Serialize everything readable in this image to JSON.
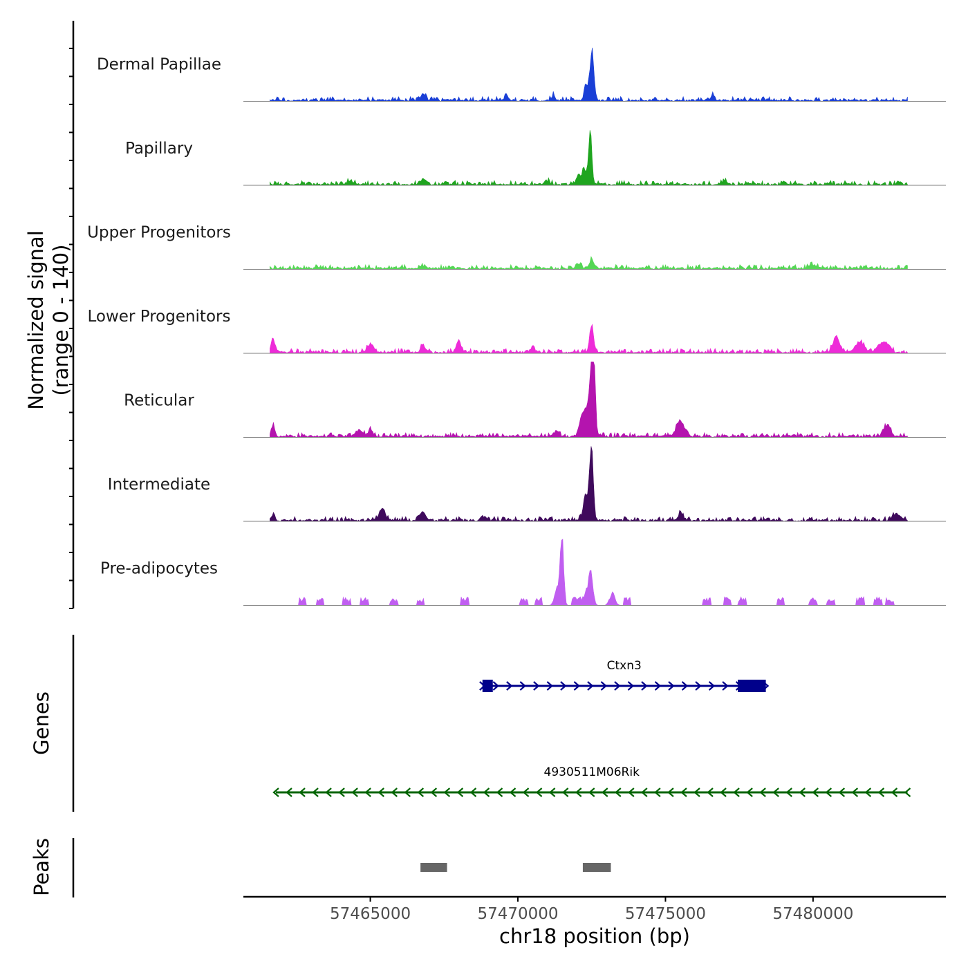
{
  "chart_data": {
    "type": "area",
    "title": "",
    "ylabel": "Normalized signal",
    "ylabel_range": "(range 0 - 140)",
    "genes_label": "Genes",
    "peaks_label": "Peaks",
    "xlabel": "chr18 position (bp)",
    "xlim": [
      57460700,
      57484500
    ],
    "ylim": [
      0,
      140
    ],
    "x_ticks": [
      57465000,
      57470000,
      57475000,
      57480000
    ],
    "x_tick_labels": [
      "57465000",
      "57470000",
      "57475000",
      "57480000"
    ],
    "tracks": [
      {
        "name": "Dermal Papillae",
        "color": "#1a3fd6",
        "seed": 3,
        "peaks": [
          [
            57472500,
            95,
            70
          ],
          [
            57472300,
            25,
            60
          ],
          [
            57466800,
            12,
            80
          ],
          [
            57476600,
            14,
            60
          ],
          [
            57469600,
            10,
            60
          ],
          [
            57471200,
            10,
            60
          ]
        ]
      },
      {
        "name": "Papillary",
        "color": "#1fa51f",
        "seed": 7,
        "peaks": [
          [
            57472450,
            100,
            55
          ],
          [
            57472250,
            32,
            60
          ],
          [
            57472050,
            20,
            60
          ],
          [
            57466800,
            10,
            100
          ],
          [
            57464300,
            6,
            100
          ],
          [
            57471000,
            7,
            80
          ],
          [
            57477000,
            5,
            100
          ]
        ]
      },
      {
        "name": "Upper Progenitors",
        "color": "#55d655",
        "seed": 11,
        "peaks": [
          [
            57472500,
            16,
            80
          ],
          [
            57472100,
            10,
            70
          ],
          [
            57480000,
            6,
            150
          ],
          [
            57466800,
            5,
            120
          ]
        ]
      },
      {
        "name": "Lower Progenitors",
        "color": "#ee2bd8",
        "seed": 13,
        "peaks": [
          [
            57472500,
            50,
            70
          ],
          [
            57461700,
            28,
            60
          ],
          [
            57465000,
            16,
            100
          ],
          [
            57468000,
            20,
            80
          ],
          [
            57480800,
            26,
            120
          ],
          [
            57481600,
            20,
            150
          ],
          [
            57482400,
            22,
            160
          ],
          [
            57466800,
            14,
            80
          ],
          [
            57470500,
            10,
            80
          ]
        ]
      },
      {
        "name": "Reticular",
        "color": "#b414ae",
        "seed": 17,
        "peaks": [
          [
            57472550,
            155,
            60
          ],
          [
            57472450,
            70,
            110
          ],
          [
            57472200,
            45,
            100
          ],
          [
            57475500,
            28,
            140
          ],
          [
            57482500,
            22,
            120
          ],
          [
            57461700,
            22,
            60
          ],
          [
            57464600,
            12,
            120
          ],
          [
            57465000,
            12,
            80
          ],
          [
            57471300,
            12,
            80
          ]
        ]
      },
      {
        "name": "Intermediate",
        "color": "#3f0a5c",
        "seed": 19,
        "peaks": [
          [
            57472500,
            138,
            55
          ],
          [
            57472350,
            50,
            110
          ],
          [
            57465400,
            18,
            110
          ],
          [
            57466800,
            12,
            100
          ],
          [
            57475500,
            14,
            80
          ],
          [
            57482800,
            12,
            100
          ],
          [
            57461700,
            8,
            60
          ],
          [
            57468800,
            8,
            60
          ]
        ]
      },
      {
        "name": "Pre-adipocytes",
        "color": "#c05ef0",
        "seed": 23,
        "peaks": [
          [
            57471500,
            125,
            55
          ],
          [
            57471350,
            38,
            90
          ],
          [
            57472450,
            68,
            80
          ],
          [
            57473200,
            22,
            90
          ]
        ],
        "spikes": [
          57462700,
          57463300,
          57464200,
          57464800,
          57465800,
          57466700,
          57468200,
          57470200,
          57470700,
          57471950,
          57472200,
          57473700,
          57476400,
          57477100,
          57477600,
          57478900,
          57480000,
          57480600,
          57481600,
          57482200,
          57482600
        ]
      }
    ],
    "genes": [
      {
        "name": "4930511M06Rik",
        "start": 57461800,
        "end": 57483200,
        "strand": "-",
        "color": "#006400",
        "exons": []
      },
      {
        "name": "Ctxn3",
        "start": 57468800,
        "end": 57478400,
        "strand": "+",
        "color": "#00008b",
        "exons": [
          [
            57468800,
            57469150
          ],
          [
            57477450,
            57478400
          ]
        ]
      }
    ],
    "peak_regions": [
      [
        57466700,
        57467600
      ],
      [
        57472200,
        57473150
      ]
    ],
    "peak_color": "#666666"
  }
}
